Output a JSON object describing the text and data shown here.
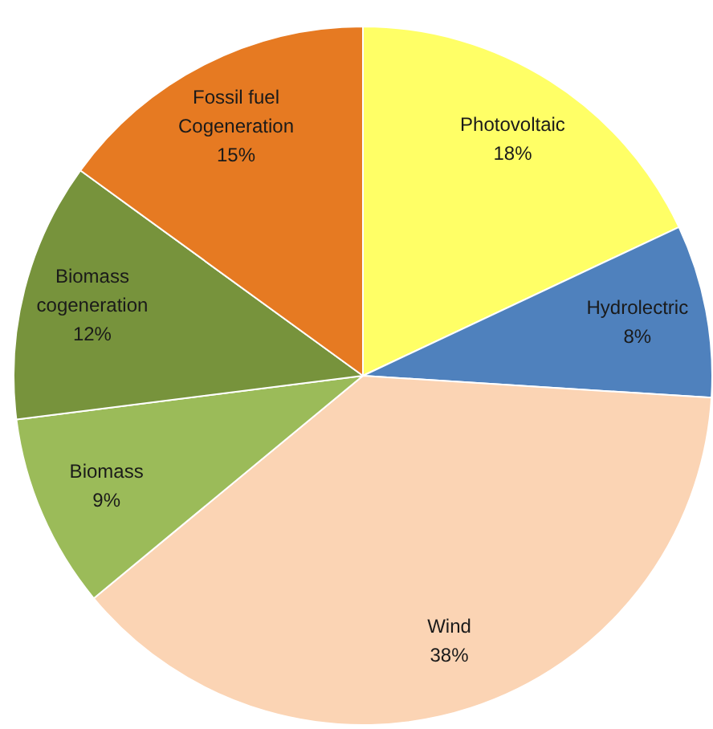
{
  "chart_data": {
    "type": "pie",
    "categories": [
      "Photovoltaic",
      "Hydrolectric",
      "Wind",
      "Biomass",
      "Biomass cogeneration",
      "Fossil fuel Cogeneration"
    ],
    "values": [
      18,
      8,
      38,
      9,
      12,
      15
    ],
    "colors": [
      "#ffff66",
      "#4f81bd",
      "#fbd4b4",
      "#9bbb59",
      "#77933c",
      "#e67a22"
    ],
    "value_labels": [
      "18%",
      "8%",
      "38%",
      "9%",
      "12%",
      "15%"
    ]
  }
}
